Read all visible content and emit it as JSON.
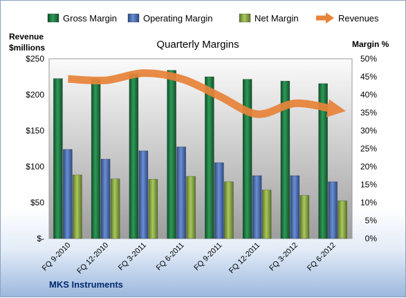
{
  "chart_data": {
    "type": "bar",
    "title": "Quarterly Margins",
    "ylabel_left": [
      "Revenue",
      "$millions"
    ],
    "ylabel_right": "Margin %",
    "categories": [
      "FQ 9-2010",
      "FQ 12-2010",
      "FQ 3-2011",
      "FQ 6-2011",
      "FQ 9-2011",
      "FQ 12-2011",
      "FQ 3-2012",
      "FQ 6-2012"
    ],
    "left_ticks": [
      "$-",
      "$50",
      "$100",
      "$150",
      "$200",
      "$250"
    ],
    "right_ticks": [
      "0%",
      "5%",
      "10%",
      "15%",
      "20%",
      "25%",
      "30%",
      "35%",
      "40%",
      "45%",
      "50%"
    ],
    "ylim_left": [
      0,
      250
    ],
    "ylim_right": [
      0,
      50
    ],
    "series": [
      {
        "name": "Gross Margin",
        "type": "bar",
        "axis": "right",
        "unit": "%",
        "color": "#1f7a45",
        "values": [
          44.5,
          44.3,
          45.8,
          46.8,
          45.0,
          44.3,
          43.8,
          43.1
        ]
      },
      {
        "name": "Operating Margin",
        "type": "bar",
        "axis": "right",
        "unit": "%",
        "color": "#4a6db5",
        "values": [
          24.8,
          22.1,
          24.4,
          25.5,
          21.1,
          17.5,
          17.5,
          15.8
        ]
      },
      {
        "name": "Net Margin",
        "type": "bar",
        "axis": "right",
        "unit": "%",
        "color": "#8fae48",
        "values": [
          17.7,
          16.6,
          16.5,
          17.3,
          15.8,
          13.5,
          12.0,
          10.5
        ]
      },
      {
        "name": "Revenues",
        "type": "line",
        "axis": "left",
        "unit": "$M",
        "color": "#e8843a",
        "values": [
          222,
          220,
          230,
          222,
          198,
          173,
          188,
          180
        ]
      }
    ],
    "legend_position": "top",
    "grid": false
  },
  "footer": {
    "company": "MKS Instruments"
  }
}
